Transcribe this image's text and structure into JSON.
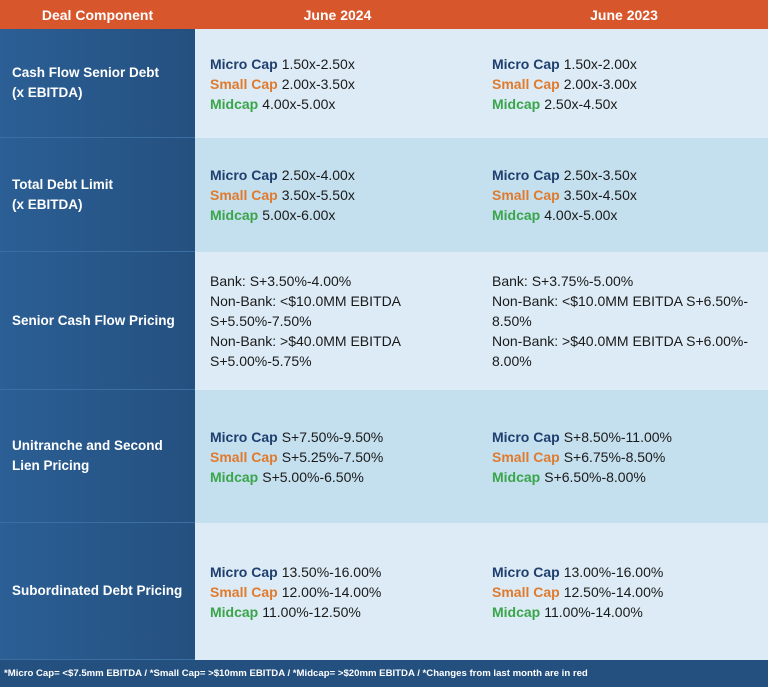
{
  "header": {
    "columns": [
      "Deal Component",
      "June 2024",
      "June 2023"
    ]
  },
  "rows": [
    {
      "label": [
        "Cash Flow Senior Debt",
        "(x EBITDA)"
      ],
      "june_2024": [
        {
          "tier": "Micro Cap",
          "text": "1.50x-2.50x"
        },
        {
          "tier": "Small Cap",
          "text": "2.00x-3.50x"
        },
        {
          "tier": "Midcap",
          "text": "4.00x-5.00x"
        }
      ],
      "june_2023": [
        {
          "tier": "Micro Cap",
          "text": "1.50x-2.00x"
        },
        {
          "tier": "Small Cap",
          "text": "2.00x-3.00x"
        },
        {
          "tier": "Midcap",
          "text": "2.50x-4.50x"
        }
      ]
    },
    {
      "label": [
        "Total Debt Limit",
        "(x EBITDA)"
      ],
      "june_2024": [
        {
          "tier": "Micro Cap",
          "text": "2.50x-4.00x"
        },
        {
          "tier": "Small Cap",
          "text": "3.50x-5.50x"
        },
        {
          "tier": "Midcap",
          "text": "5.00x-6.00x"
        }
      ],
      "june_2023": [
        {
          "tier": "Micro Cap",
          "text": "2.50x-3.50x"
        },
        {
          "tier": "Small Cap",
          "text": "3.50x-4.50x"
        },
        {
          "tier": "Midcap",
          "text": "4.00x-5.00x"
        }
      ]
    },
    {
      "label": [
        "Senior Cash Flow Pricing"
      ],
      "june_2024": [
        {
          "text": "Bank: S+3.50%-4.00%"
        },
        {
          "text": "Non-Bank:  <$10.0MM EBITDA"
        },
        {
          "text": "S+5.50%-7.50%"
        },
        {
          "text": "Non-Bank: >$40.0MM EBITDA"
        },
        {
          "text": "S+5.00%-5.75%"
        }
      ],
      "june_2023": [
        {
          "text": "Bank: S+3.75%-5.00%"
        },
        {
          "text": "Non-Bank: <$10.0MM EBITDA S+6.50%-"
        },
        {
          "text": "8.50%"
        },
        {
          "text": "Non-Bank: >$40.0MM EBITDA S+6.00%-"
        },
        {
          "text": "8.00%"
        }
      ]
    },
    {
      "label": [
        "Unitranche and Second",
        "Lien Pricing"
      ],
      "june_2024": [
        {
          "tier": "Micro Cap",
          "text": "S+7.50%-9.50%"
        },
        {
          "tier": "Small Cap",
          "text": "S+5.25%-7.50%"
        },
        {
          "tier": "Midcap",
          "text": "S+5.00%-6.50%"
        }
      ],
      "june_2023": [
        {
          "tier": "Micro Cap",
          "text": "S+8.50%-11.00%"
        },
        {
          "tier": "Small Cap",
          "text": "S+6.75%-8.50%"
        },
        {
          "tier": "Midcap",
          "text": "S+6.50%-8.00%"
        }
      ]
    },
    {
      "label": [
        "Subordinated Debt Pricing"
      ],
      "june_2024": [
        {
          "tier": "Micro Cap",
          "text": "13.50%-16.00%"
        },
        {
          "tier": "Small Cap",
          "text": "12.00%-14.00%"
        },
        {
          "tier": "Midcap",
          "text": "11.00%-12.50%"
        }
      ],
      "june_2023": [
        {
          "tier": "Micro Cap",
          "text": "13.00%-16.00%"
        },
        {
          "tier": "Small Cap",
          "text": "12.50%-14.00%"
        },
        {
          "tier": "Midcap",
          "text": "11.00%-14.00%"
        }
      ]
    }
  ],
  "footnote": "*Micro Cap= <$7.5mm EBITDA / *Small Cap= >$10mm EBITDA / *Midcap= >$20mm EBITDA / *Changes from last month are in red"
}
